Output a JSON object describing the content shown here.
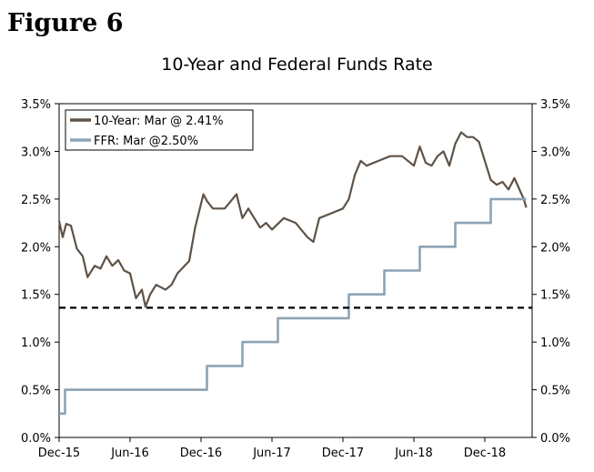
{
  "figure_label": "Figure 6",
  "chart_data": {
    "type": "line",
    "title": "10-Year and Federal Funds Rate",
    "xlabel": "",
    "ylabel": "",
    "ylim": [
      0,
      3.5
    ],
    "y_ticks": [
      "0.0%",
      "0.5%",
      "1.0%",
      "1.5%",
      "2.0%",
      "2.5%",
      "3.0%",
      "3.5%"
    ],
    "y_tick_values": [
      0,
      0.5,
      1.0,
      1.5,
      2.0,
      2.5,
      3.0,
      3.5
    ],
    "x_range_months": [
      0,
      40
    ],
    "x_ticks": [
      "Dec-15",
      "Jun-16",
      "Dec-16",
      "Jun-17",
      "Dec-17",
      "Jun-18",
      "Dec-18"
    ],
    "x_tick_months": [
      0,
      6,
      12,
      18,
      24,
      30,
      36
    ],
    "reference_line": {
      "value": 1.36,
      "style": "dashed",
      "color": "#000000"
    },
    "legend_position": "top-left",
    "series": [
      {
        "name": "10-Year: Mar @ 2.41%",
        "color": "#5e5247",
        "x": [
          0,
          0.3,
          0.6,
          1.0,
          1.5,
          2.0,
          2.4,
          3.0,
          3.5,
          4.0,
          4.5,
          5.0,
          5.5,
          6.0,
          6.5,
          7.0,
          7.3,
          7.7,
          8.2,
          9.0,
          9.5,
          10.0,
          11.0,
          11.5,
          12.0,
          12.2,
          12.5,
          13.0,
          14.0,
          15.0,
          15.5,
          16.0,
          17.0,
          17.5,
          18.0,
          19.0,
          20.0,
          21.0,
          21.5,
          22.0,
          23.0,
          24.0,
          24.5,
          25.0,
          25.5,
          26.0,
          27.0,
          28.0,
          29.0,
          30.0,
          30.5,
          31.0,
          31.5,
          32.0,
          32.5,
          33.0,
          33.5,
          34.0,
          34.5,
          35.0,
          35.5,
          36.0,
          36.5,
          37.0,
          37.5,
          38.0,
          38.5,
          39.0,
          39.3,
          39.5
        ],
        "values": [
          2.27,
          2.1,
          2.24,
          2.22,
          1.98,
          1.9,
          1.68,
          1.8,
          1.77,
          1.9,
          1.8,
          1.86,
          1.75,
          1.72,
          1.46,
          1.55,
          1.37,
          1.5,
          1.6,
          1.55,
          1.6,
          1.72,
          1.85,
          2.2,
          2.45,
          2.55,
          2.48,
          2.4,
          2.4,
          2.55,
          2.3,
          2.4,
          2.2,
          2.25,
          2.18,
          2.3,
          2.25,
          2.1,
          2.05,
          2.3,
          2.35,
          2.4,
          2.5,
          2.75,
          2.9,
          2.85,
          2.9,
          2.95,
          2.95,
          2.85,
          3.05,
          2.88,
          2.85,
          2.95,
          3.0,
          2.85,
          3.08,
          3.2,
          3.15,
          3.15,
          3.1,
          2.9,
          2.7,
          2.65,
          2.68,
          2.6,
          2.72,
          2.58,
          2.5,
          2.41
        ]
      },
      {
        "name": "FFR: Mar @2.50%",
        "color": "#8ea3b3",
        "x": [
          0,
          0.5,
          0.5,
          12.5,
          12.5,
          15.5,
          15.5,
          18.5,
          18.5,
          24.5,
          24.5,
          27.5,
          27.5,
          30.5,
          30.5,
          33.5,
          33.5,
          36.5,
          36.5,
          39.5
        ],
        "values": [
          0.25,
          0.25,
          0.5,
          0.5,
          0.75,
          0.75,
          1.0,
          1.0,
          1.25,
          1.25,
          1.5,
          1.5,
          1.75,
          1.75,
          2.0,
          2.0,
          2.25,
          2.25,
          2.5,
          2.5
        ]
      }
    ]
  }
}
